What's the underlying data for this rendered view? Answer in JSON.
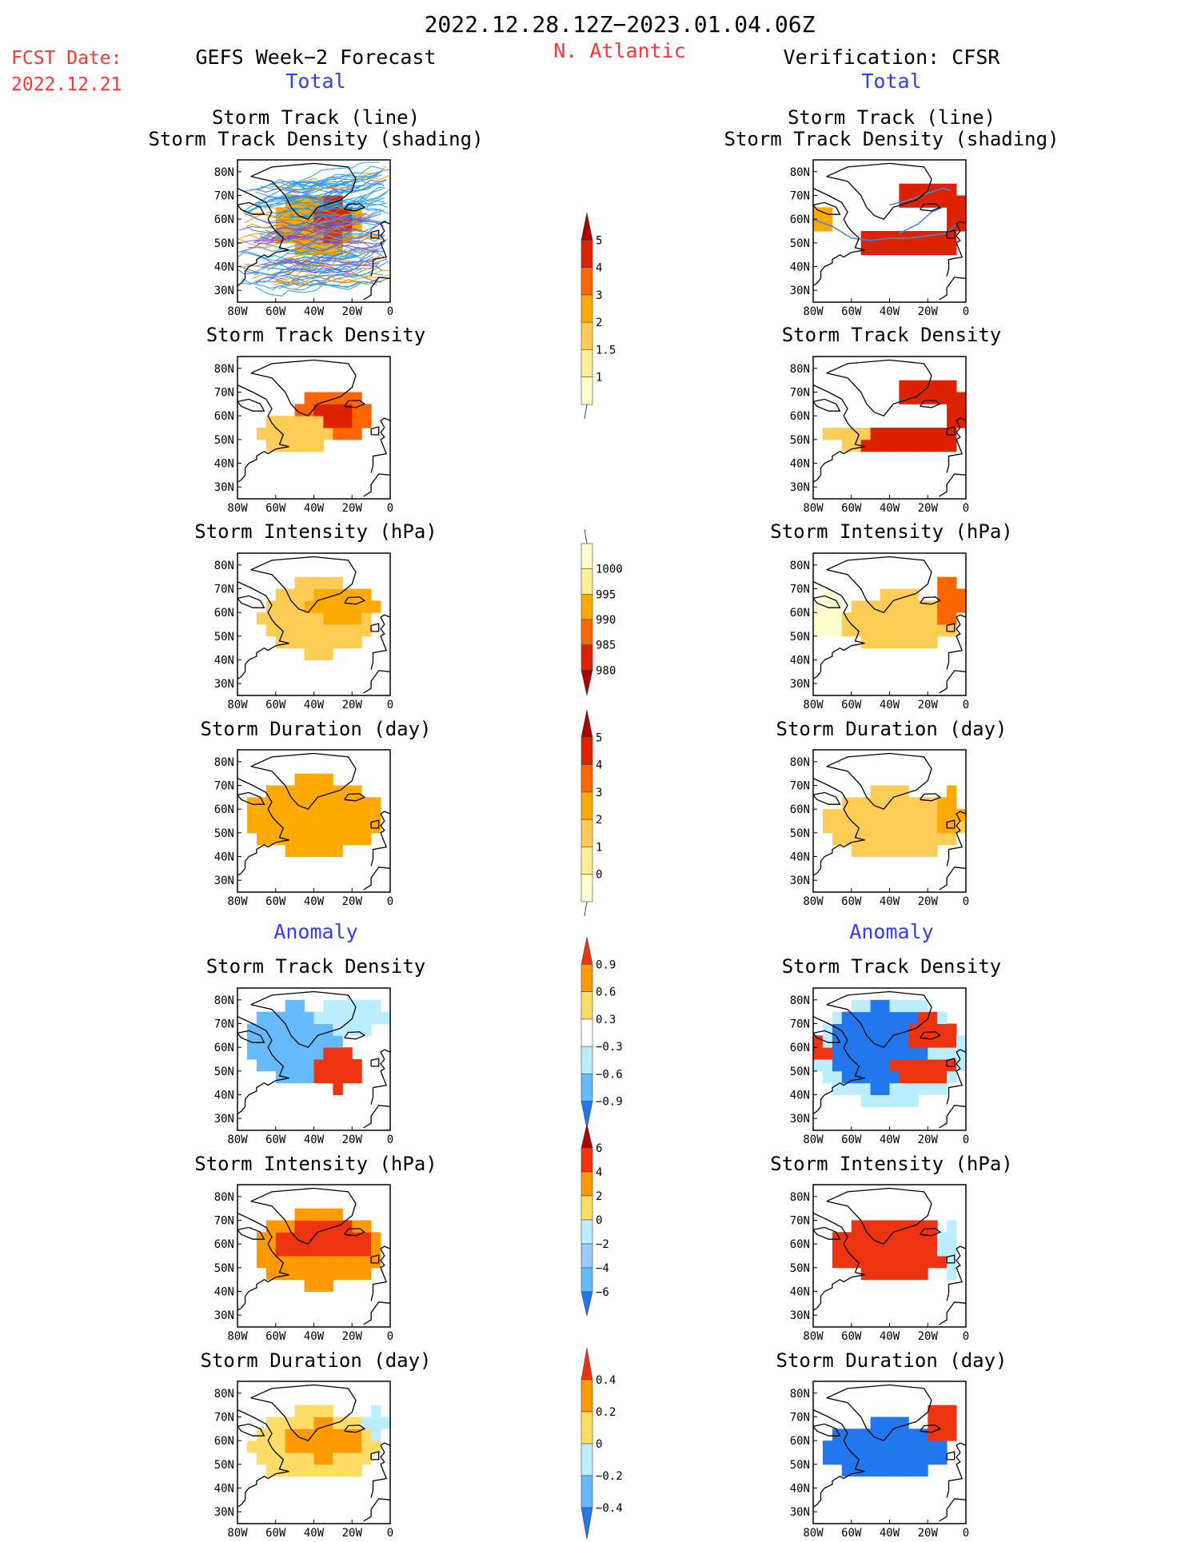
{
  "header": {
    "period": "2022.12.28.12Z−2023.01.04.06Z",
    "fcst_label": "FCST Date:",
    "fcst_date": "2022.12.21",
    "region": "N. Atlantic",
    "left_title": "GEFS Week−2 Forecast",
    "right_title": "Verification: CFSR",
    "total_label": "Total",
    "anomaly_label": "Anomaly"
  },
  "colors": {
    "red_text": "#ff3333",
    "blue_text": "#2f3cff",
    "track_blue": "#2299ee",
    "track_orange": "#ee9900",
    "track_purple": "#8844cc"
  },
  "chart_data": [
    {
      "id": "fc_track_line",
      "type": "heatmap",
      "column": "GEFS Week−2 Forecast",
      "title_line1": "Storm Track (line)",
      "title_line2": "Storm Track Density (shading)",
      "xticks": [
        "80W",
        "60W",
        "40W",
        "20W",
        "0"
      ],
      "yticks": [
        "80N",
        "70N",
        "60N",
        "50N",
        "40N",
        "30N"
      ],
      "xlim": [
        -80,
        0
      ],
      "ylim": [
        25,
        85
      ],
      "blobs": [
        {
          "lon": -38,
          "lat": 58,
          "rlon": 22,
          "rlat": 13,
          "level": 3
        },
        {
          "lon": -30,
          "lat": 60,
          "rlon": 12,
          "rlat": 8,
          "level": 5
        }
      ]
    },
    {
      "id": "vf_track_line",
      "type": "heatmap",
      "column": "Verification: CFSR",
      "title_line1": "Storm Track (line)",
      "title_line2": "Storm Track Density (shading)",
      "xticks": [
        "80W",
        "60W",
        "40W",
        "20W",
        "0"
      ],
      "yticks": [
        "80N",
        "70N",
        "60N",
        "50N",
        "40N",
        "30N"
      ],
      "xlim": [
        -80,
        0
      ],
      "ylim": [
        25,
        85
      ],
      "blobs": [
        {
          "lon": -22,
          "lat": 70,
          "rlon": 16,
          "rlat": 7,
          "level": 5
        },
        {
          "lon": -30,
          "lat": 51,
          "rlon": 28,
          "rlat": 6,
          "level": 5
        },
        {
          "lon": -6,
          "lat": 62,
          "rlon": 6,
          "rlat": 10,
          "level": 5
        },
        {
          "lon": -75,
          "lat": 59,
          "rlon": 5,
          "rlat": 5,
          "level": 3
        }
      ]
    },
    {
      "id": "fc_density",
      "type": "heatmap",
      "column": "GEFS Week−2 Forecast",
      "title": "Storm Track Density",
      "xticks": [
        "80W",
        "60W",
        "40W",
        "20W",
        "0"
      ],
      "yticks": [
        "80N",
        "70N",
        "60N",
        "50N",
        "40N",
        "30N"
      ],
      "xlim": [
        -80,
        0
      ],
      "ylim": [
        25,
        85
      ],
      "blobs": [
        {
          "lon": -30,
          "lat": 60,
          "rlon": 18,
          "rlat": 11,
          "level": 4
        },
        {
          "lon": -30,
          "lat": 60,
          "rlon": 9,
          "rlat": 6,
          "level": 5
        },
        {
          "lon": -50,
          "lat": 53,
          "rlon": 20,
          "rlat": 8,
          "level": 2
        }
      ]
    },
    {
      "id": "vf_density",
      "type": "heatmap",
      "column": "Verification: CFSR",
      "title": "Storm Track Density",
      "xticks": [
        "80W",
        "60W",
        "40W",
        "20W",
        "0"
      ],
      "yticks": [
        "80N",
        "70N",
        "60N",
        "50N",
        "40N",
        "30N"
      ],
      "xlim": [
        -80,
        0
      ],
      "ylim": [
        25,
        85
      ],
      "blobs": [
        {
          "lon": -22,
          "lat": 70,
          "rlon": 16,
          "rlat": 7,
          "level": 5
        },
        {
          "lon": -30,
          "lat": 51,
          "rlon": 28,
          "rlat": 6,
          "level": 5
        },
        {
          "lon": -6,
          "lat": 62,
          "rlon": 6,
          "rlat": 10,
          "level": 5
        },
        {
          "lon": -62,
          "lat": 52,
          "rlon": 12,
          "rlat": 5,
          "level": 2
        }
      ]
    },
    {
      "id": "fc_intensity",
      "type": "heatmap",
      "column": "GEFS Week−2 Forecast",
      "title": "Storm Intensity (hPa)",
      "xticks": [
        "80W",
        "60W",
        "40W",
        "20W",
        "0"
      ],
      "yticks": [
        "80N",
        "70N",
        "60N",
        "50N",
        "40N",
        "30N"
      ],
      "xlim": [
        -80,
        0
      ],
      "ylim": [
        25,
        85
      ],
      "blobs": [
        {
          "lon": -38,
          "lat": 58,
          "rlon": 30,
          "rlat": 16,
          "level": 2
        },
        {
          "lon": -25,
          "lat": 64,
          "rlon": 18,
          "rlat": 8,
          "level": 3
        }
      ]
    },
    {
      "id": "vf_intensity",
      "type": "heatmap",
      "column": "Verification: CFSR",
      "title": "Storm Intensity (hPa)",
      "xticks": [
        "80W",
        "60W",
        "40W",
        "20W",
        "0"
      ],
      "yticks": [
        "80N",
        "70N",
        "60N",
        "50N",
        "40N",
        "30N"
      ],
      "xlim": [
        -80,
        0
      ],
      "ylim": [
        25,
        85
      ],
      "blobs": [
        {
          "lon": -35,
          "lat": 56,
          "rlon": 30,
          "rlat": 12,
          "level": 2
        },
        {
          "lon": -8,
          "lat": 65,
          "rlon": 6,
          "rlat": 12,
          "level": 4
        },
        {
          "lon": -72,
          "lat": 58,
          "rlon": 8,
          "rlat": 10,
          "level": 0
        }
      ]
    },
    {
      "id": "fc_duration",
      "type": "heatmap",
      "column": "GEFS Week−2 Forecast",
      "title": "Storm Duration (day)",
      "xticks": [
        "80W",
        "60W",
        "40W",
        "20W",
        "0"
      ],
      "yticks": [
        "80N",
        "70N",
        "60N",
        "50N",
        "40N",
        "30N"
      ],
      "xlim": [
        -80,
        0
      ],
      "ylim": [
        25,
        85
      ],
      "blobs": [
        {
          "lon": -40,
          "lat": 57,
          "rlon": 36,
          "rlat": 16,
          "level": 3
        }
      ]
    },
    {
      "id": "vf_duration",
      "type": "heatmap",
      "column": "Verification: CFSR",
      "title": "Storm Duration (day)",
      "xticks": [
        "80W",
        "60W",
        "40W",
        "20W",
        "0"
      ],
      "yticks": [
        "80N",
        "70N",
        "60N",
        "50N",
        "40N",
        "30N"
      ],
      "xlim": [
        -80,
        0
      ],
      "ylim": [
        25,
        85
      ],
      "blobs": [
        {
          "lon": -38,
          "lat": 54,
          "rlon": 36,
          "rlat": 14,
          "level": 2
        },
        {
          "lon": -8,
          "lat": 58,
          "rlon": 6,
          "rlat": 10,
          "level": 3
        }
      ]
    },
    {
      "id": "fc_density_anom",
      "type": "heatmap",
      "column": "GEFS Week−2 Forecast",
      "title": "Storm Track Density",
      "xticks": [
        "80W",
        "60W",
        "40W",
        "20W",
        "0"
      ],
      "yticks": [
        "80N",
        "70N",
        "60N",
        "50N",
        "40N",
        "30N"
      ],
      "xlim": [
        -80,
        0
      ],
      "ylim": [
        25,
        85
      ],
      "blobs": [
        {
          "lon": -50,
          "lat": 62,
          "rlon": 26,
          "rlat": 16,
          "level": -2
        },
        {
          "lon": -20,
          "lat": 73,
          "rlon": 20,
          "rlat": 6,
          "level": -1
        },
        {
          "lon": -28,
          "lat": 51,
          "rlon": 13,
          "rlat": 9,
          "level": 3
        }
      ]
    },
    {
      "id": "vf_density_anom",
      "type": "heatmap",
      "column": "Verification: CFSR",
      "title": "Storm Track Density",
      "xticks": [
        "80W",
        "60W",
        "40W",
        "20W",
        "0"
      ],
      "yticks": [
        "80N",
        "70N",
        "60N",
        "50N",
        "40N",
        "30N"
      ],
      "xlim": [
        -80,
        0
      ],
      "ylim": [
        25,
        85
      ],
      "blobs": [
        {
          "lon": -40,
          "lat": 58,
          "rlon": 40,
          "rlat": 22,
          "level": -1
        },
        {
          "lon": -45,
          "lat": 60,
          "rlon": 25,
          "rlat": 18,
          "level": -3
        },
        {
          "lon": -18,
          "lat": 66,
          "rlon": 14,
          "rlat": 7,
          "level": 3
        },
        {
          "lon": -22,
          "lat": 51,
          "rlon": 18,
          "rlat": 5,
          "level": 3
        },
        {
          "lon": -76,
          "lat": 58,
          "rlon": 4,
          "rlat": 5,
          "level": 3
        }
      ]
    },
    {
      "id": "fc_intensity_anom",
      "type": "heatmap",
      "column": "GEFS Week−2 Forecast",
      "title": "Storm Intensity (hPa)",
      "xticks": [
        "80W",
        "60W",
        "40W",
        "20W",
        "0"
      ],
      "yticks": [
        "80N",
        "70N",
        "60N",
        "50N",
        "40N",
        "30N"
      ],
      "xlim": [
        -80,
        0
      ],
      "ylim": [
        25,
        85
      ],
      "blobs": [
        {
          "lon": -38,
          "lat": 58,
          "rlon": 34,
          "rlat": 16,
          "level": 2
        },
        {
          "lon": -35,
          "lat": 61,
          "rlon": 26,
          "rlat": 8,
          "level": 3
        }
      ]
    },
    {
      "id": "vf_intensity_anom",
      "type": "heatmap",
      "column": "Verification: CFSR",
      "title": "Storm Intensity (hPa)",
      "xticks": [
        "80W",
        "60W",
        "40W",
        "20W",
        "0"
      ],
      "yticks": [
        "80N",
        "70N",
        "60N",
        "50N",
        "40N",
        "30N"
      ],
      "xlim": [
        -80,
        0
      ],
      "ylim": [
        25,
        85
      ],
      "blobs": [
        {
          "lon": -38,
          "lat": 58,
          "rlon": 34,
          "rlat": 12,
          "level": 3
        },
        {
          "lon": -8,
          "lat": 58,
          "rlon": 5,
          "rlat": 12,
          "level": -1
        }
      ]
    },
    {
      "id": "fc_duration_anom",
      "type": "heatmap",
      "column": "GEFS Week−2 Forecast",
      "title": "Storm Duration (day)",
      "xticks": [
        "80W",
        "60W",
        "40W",
        "20W",
        "0"
      ],
      "yticks": [
        "80N",
        "70N",
        "60N",
        "50N",
        "40N",
        "30N"
      ],
      "xlim": [
        -80,
        0
      ],
      "ylim": [
        25,
        85
      ],
      "blobs": [
        {
          "lon": -40,
          "lat": 58,
          "rlon": 34,
          "rlat": 15,
          "level": 1
        },
        {
          "lon": -35,
          "lat": 60,
          "rlon": 20,
          "rlat": 8,
          "level": 2
        },
        {
          "lon": -8,
          "lat": 68,
          "rlon": 6,
          "rlat": 6,
          "level": -1
        }
      ]
    },
    {
      "id": "vf_duration_anom",
      "type": "heatmap",
      "column": "Verification: CFSR",
      "title": "Storm Duration (day)",
      "xticks": [
        "80W",
        "60W",
        "40W",
        "20W",
        "0"
      ],
      "yticks": [
        "80N",
        "70N",
        "60N",
        "50N",
        "40N",
        "30N"
      ],
      "xlim": [
        -80,
        0
      ],
      "ylim": [
        25,
        85
      ],
      "blobs": [
        {
          "lon": -42,
          "lat": 56,
          "rlon": 34,
          "rlat": 12,
          "level": -3
        },
        {
          "lon": -12,
          "lat": 68,
          "rlon": 8,
          "rlat": 9,
          "level": 3
        }
      ]
    }
  ],
  "colorbars": [
    {
      "id": "cb_density",
      "labels": [
        "5",
        "4",
        "3",
        "2",
        "1.5",
        "1"
      ],
      "colors": [
        "#aa0000",
        "#dd2200",
        "#ff6600",
        "#ffaa00",
        "#ffcc55",
        "#ffee99",
        "#ffffcc"
      ],
      "upper_arrow": true,
      "lower_tail": true
    },
    {
      "id": "cb_intensity",
      "labels": [
        "1000",
        "995",
        "990",
        "985",
        "980"
      ],
      "colors": [
        "#ffffcc",
        "#ffee99",
        "#ffaa00",
        "#ff6600",
        "#dd2200",
        "#aa0000"
      ],
      "upper_tail": true,
      "lower_arrow": true
    },
    {
      "id": "cb_duration",
      "labels": [
        "5",
        "4",
        "3",
        "2",
        "1",
        "0"
      ],
      "colors": [
        "#aa0000",
        "#dd2200",
        "#ff6600",
        "#ffaa00",
        "#ffcc55",
        "#ffee99",
        "#ffffcc"
      ],
      "upper_arrow": true,
      "lower_tail": true
    },
    {
      "id": "cb_density_anom",
      "labels": [
        "0.9",
        "0.6",
        "0.3",
        "−0.3",
        "−0.6",
        "−0.9"
      ],
      "colors": [
        "#ee3311",
        "#ff9900",
        "#ffdd66",
        "#ffffff",
        "#bbeeff",
        "#66bbff",
        "#2277ee"
      ],
      "upper_arrow": true,
      "lower_arrow": true
    },
    {
      "id": "cb_intensity_anom",
      "labels": [
        "6",
        "4",
        "2",
        "0",
        "−2",
        "−4",
        "−6"
      ],
      "colors": [
        "#aa0000",
        "#ee3311",
        "#ff9900",
        "#ffdd66",
        "#bbeeff",
        "#99ccff",
        "#66bbff",
        "#2277ee"
      ],
      "upper_arrow": true,
      "lower_arrow": true
    },
    {
      "id": "cb_duration_anom",
      "labels": [
        "0.4",
        "0.2",
        "0",
        "−0.2",
        "−0.4"
      ],
      "colors": [
        "#ee3311",
        "#ff9900",
        "#ffdd66",
        "#bbeeff",
        "#66bbff",
        "#2277ee"
      ],
      "upper_arrow": true,
      "lower_arrow": true
    }
  ]
}
